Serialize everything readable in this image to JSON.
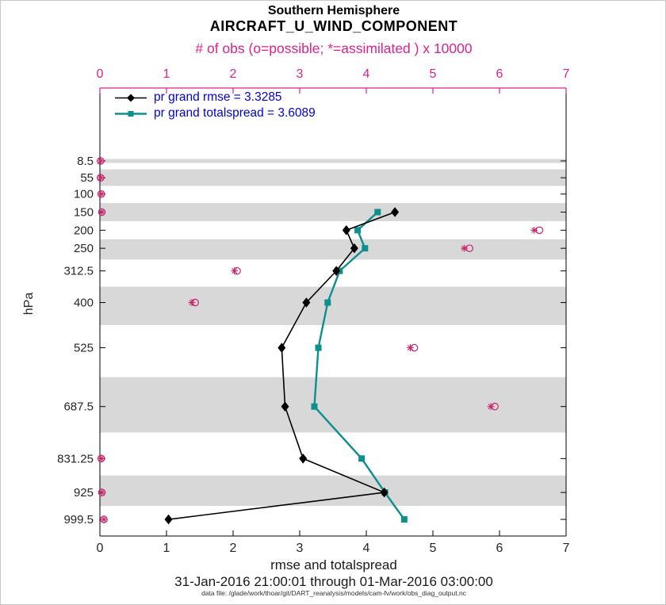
{
  "titles": {
    "line1": "Southern Hemisphere",
    "line2": "AIRCRAFT_U_WIND_COMPONENT",
    "obs_axis": "# of obs (o=possible; *=assimilated ) x 10000"
  },
  "legend": {
    "rmse": "pr grand rmse = 3.3285",
    "totalspread": "pr grand totalspread = 3.6089"
  },
  "axes": {
    "x_label": "rmse and totalspread",
    "y_label": "hPa",
    "x_ticks": [
      "0",
      "1",
      "2",
      "3",
      "4",
      "5",
      "6",
      "7"
    ],
    "x_min": 0,
    "x_max": 7
  },
  "footer": {
    "date_range": "31-Jan-2016 21:00:01 through 01-Mar-2016 03:00:00",
    "data_file": "data file: /glade/work/thoar/git/DART_reanalysis/models/cam-fv/work/obs_diag_output.nc"
  },
  "colors": {
    "magenta": "#e0218a",
    "obs_marker": "#c9256e",
    "teal": "#0e8f8f",
    "black": "#000000",
    "legend_text": "#0000e0",
    "band": "#d8d8d8",
    "axis": "#000000",
    "tick_text": "#262626"
  },
  "chart_data": {
    "type": "line",
    "orientation": "vertical-pressure-profile",
    "title": "Southern Hemisphere AIRCRAFT_U_WIND_COMPONENT",
    "xlabel": "rmse and totalspread",
    "ylabel": "hPa",
    "top_xlabel": "# of obs (o=possible; *=assimilated ) x 10000",
    "xlim": [
      0,
      7
    ],
    "y_axis_reversed": true,
    "grid": false,
    "legend_position": "top-left-inside",
    "y_ticks": [
      {
        "label": "8.5",
        "p": 8.5
      },
      {
        "label": "55",
        "p": 55
      },
      {
        "label": "100",
        "p": 100
      },
      {
        "label": "150",
        "p": 150
      },
      {
        "label": "200",
        "p": 200
      },
      {
        "label": "250",
        "p": 250
      },
      {
        "label": "312.5",
        "p": 312.5
      },
      {
        "label": "400",
        "p": 400
      },
      {
        "label": "525",
        "p": 525
      },
      {
        "label": "687.5",
        "p": 687.5
      },
      {
        "label": "831.25",
        "p": 831.25
      },
      {
        "label": "925",
        "p": 925
      },
      {
        "label": "999.5",
        "p": 999.5
      }
    ],
    "shaded_bands": [
      [
        3,
        14
      ],
      [
        31.75,
        77.5
      ],
      [
        125,
        175
      ],
      [
        225,
        281.25
      ],
      [
        356.25,
        462.5
      ],
      [
        606.25,
        759.375
      ],
      [
        878.125,
        962.25
      ]
    ],
    "series": [
      {
        "name": "pr grand rmse",
        "summary_value": 3.3285,
        "marker": "diamond",
        "color": "#000000",
        "points": [
          {
            "level": 150,
            "value": 4.43
          },
          {
            "level": 200,
            "value": 3.7
          },
          {
            "level": 250,
            "value": 3.82
          },
          {
            "level": 312.5,
            "value": 3.55
          },
          {
            "level": 400,
            "value": 3.1
          },
          {
            "level": 525,
            "value": 2.73
          },
          {
            "level": 687.5,
            "value": 2.78
          },
          {
            "level": 831.25,
            "value": 3.05
          },
          {
            "level": 925,
            "value": 4.27
          },
          {
            "level": 999.5,
            "value": 1.03
          }
        ]
      },
      {
        "name": "pr grand totalspread",
        "summary_value": 3.6089,
        "marker": "square",
        "color": "#0e8f8f",
        "points": [
          {
            "level": 150,
            "value": 4.17
          },
          {
            "level": 200,
            "value": 3.87
          },
          {
            "level": 250,
            "value": 3.98
          },
          {
            "level": 312.5,
            "value": 3.6
          },
          {
            "level": 400,
            "value": 3.42
          },
          {
            "level": 525,
            "value": 3.28
          },
          {
            "level": 687.5,
            "value": 3.22
          },
          {
            "level": 831.25,
            "value": 3.93
          },
          {
            "level": 925,
            "value": 4.28
          },
          {
            "level": 999.5,
            "value": 4.57
          }
        ]
      }
    ],
    "obs_counts_x10000": [
      {
        "level": 8.5,
        "possible": 0.01,
        "assimilated": 0.01
      },
      {
        "level": 55,
        "possible": 0.01,
        "assimilated": 0.01
      },
      {
        "level": 100,
        "possible": 0.02,
        "assimilated": 0.02
      },
      {
        "level": 150,
        "possible": 0.03,
        "assimilated": 0.03
      },
      {
        "level": 200,
        "possible": 6.6,
        "assimilated": 6.52
      },
      {
        "level": 250,
        "possible": 5.55,
        "assimilated": 5.47
      },
      {
        "level": 312.5,
        "possible": 2.06,
        "assimilated": 2.02
      },
      {
        "level": 400,
        "possible": 1.43,
        "assimilated": 1.38
      },
      {
        "level": 525,
        "possible": 4.72,
        "assimilated": 4.66
      },
      {
        "level": 687.5,
        "possible": 5.93,
        "assimilated": 5.87
      },
      {
        "level": 831.25,
        "possible": 0.02,
        "assimilated": 0.02
      },
      {
        "level": 925,
        "possible": 0.03,
        "assimilated": 0.03
      },
      {
        "level": 999.5,
        "possible": 0.06,
        "assimilated": 0.06
      }
    ]
  }
}
